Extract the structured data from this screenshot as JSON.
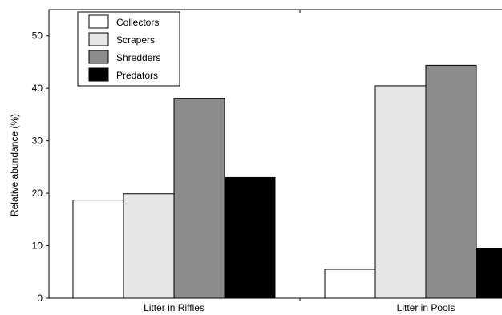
{
  "chart_data": {
    "type": "bar",
    "title": "",
    "xlabel": "",
    "ylabel": "Relative abundance (%)",
    "categories": [
      "Litter in Riffles",
      "Litter in Pools"
    ],
    "ylim": [
      0,
      55
    ],
    "yticks": [
      0,
      10,
      20,
      30,
      40,
      50
    ],
    "grid": false,
    "legend_position": "top-left",
    "series": [
      {
        "name": "Collectors",
        "color": "#ffffff",
        "values": [
          18.7,
          5.5
        ]
      },
      {
        "name": "Scrapers",
        "color": "#e6e6e6",
        "values": [
          19.9,
          40.5
        ]
      },
      {
        "name": "Shredders",
        "color": "#8c8c8c",
        "values": [
          38.1,
          44.4
        ]
      },
      {
        "name": "Predators",
        "color": "#000000",
        "values": [
          23.0,
          9.4
        ]
      }
    ]
  }
}
